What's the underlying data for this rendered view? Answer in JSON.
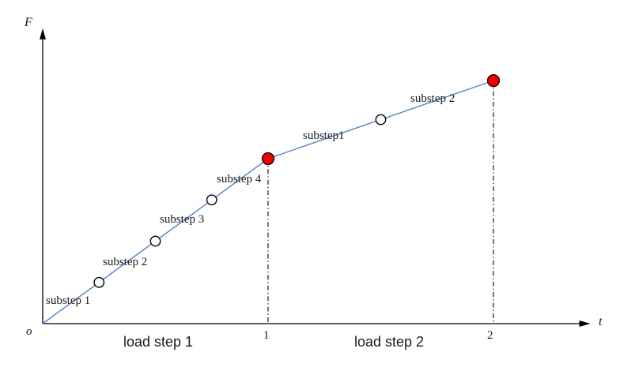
{
  "colors": {
    "curve": "#5585c5",
    "axis": "#000000",
    "marker_stroke": "#000000",
    "substep_marker_fill": "#ffffff",
    "loadstep_marker_fill": "#f00000",
    "dashdot": "#1a1a1a"
  },
  "chart_data": {
    "type": "line",
    "title": "",
    "xlabel": "t",
    "ylabel": "F",
    "origin_label": "o",
    "xlim": [
      0,
      2.43
    ],
    "ylim": [
      0,
      1.79
    ],
    "grid": false,
    "x_ticks": [
      {
        "value": 1,
        "label": "1"
      },
      {
        "value": 2,
        "label": "2"
      }
    ],
    "load_steps": [
      {
        "label": "load step 1",
        "t_start": 0,
        "t_end": 1
      },
      {
        "label": "load step 2",
        "t_start": 1,
        "t_end": 2
      }
    ],
    "points": [
      {
        "t": 0,
        "F": 0,
        "marker": "none",
        "label": ""
      },
      {
        "t": 0.25,
        "F": 0.25,
        "marker": "substep",
        "label": "substep 1"
      },
      {
        "t": 0.5,
        "F": 0.5,
        "marker": "substep",
        "label": "substep 2"
      },
      {
        "t": 0.75,
        "F": 0.75,
        "marker": "substep",
        "label": "substep 3"
      },
      {
        "t": 1,
        "F": 1.0,
        "marker": "loadstep-end",
        "label": "substep 4"
      },
      {
        "t": 1.5,
        "F": 1.237,
        "marker": "substep",
        "label": "substep1"
      },
      {
        "t": 2,
        "F": 1.473,
        "marker": "loadstep-end",
        "label": "substep 2"
      }
    ]
  }
}
